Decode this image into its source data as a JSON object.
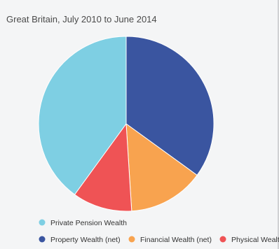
{
  "subtitle": "Great Britain, July 2010 to June 2014",
  "chart_data": {
    "type": "pie",
    "title": "",
    "subtitle": "Great Britain, July 2010 to June 2014",
    "slices": [
      {
        "label": "Private Pension Wealth",
        "value": 40,
        "color": "#7ecfe3"
      },
      {
        "label": "Property Wealth (net)",
        "value": 35,
        "color": "#3a55a0"
      },
      {
        "label": "Financial Wealth (net)",
        "value": 14,
        "color": "#f8a34f"
      },
      {
        "label": "Physical Wealth",
        "value": 11,
        "color": "#ef5355"
      }
    ],
    "legend_placement": "bottom"
  }
}
